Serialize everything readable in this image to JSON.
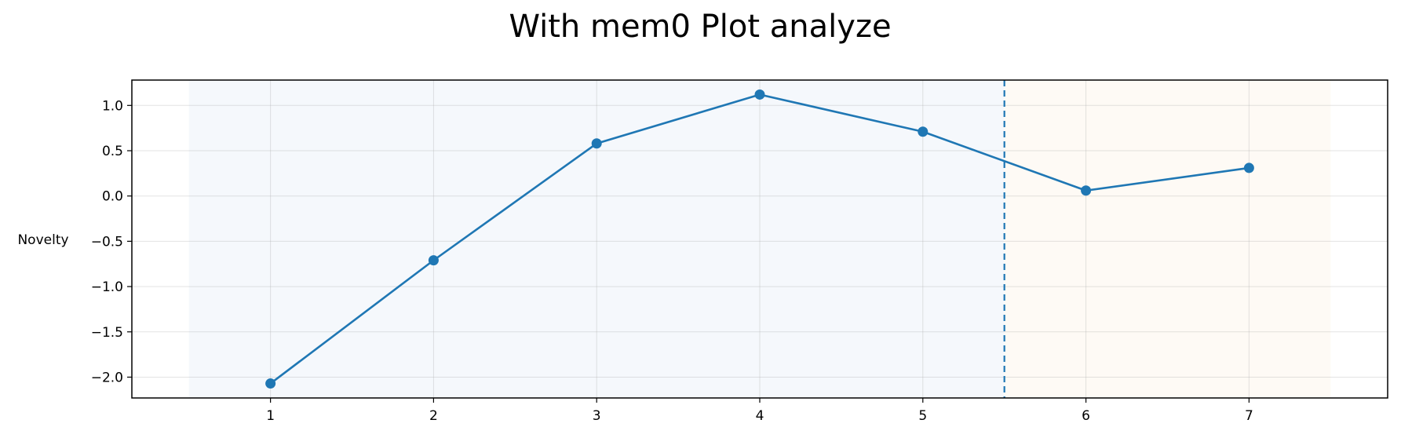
{
  "chart_data": {
    "type": "line",
    "title": "With mem0 Plot analyze",
    "xlabel": "",
    "ylabel": "Novelty",
    "x": [
      1,
      2,
      3,
      4,
      5,
      6,
      7
    ],
    "x_ticks": [
      1,
      2,
      3,
      4,
      5,
      6,
      7
    ],
    "x_tick_labels": [
      "1",
      "2",
      "3",
      "4",
      "5",
      "6",
      "7"
    ],
    "xlim": [
      0.15,
      7.85
    ],
    "ylim": [
      -2.23,
      1.28
    ],
    "y_ticks": [
      1.0,
      0.5,
      0.0,
      -0.5,
      -1.0,
      -1.5,
      -2.0
    ],
    "y_tick_labels": [
      "1.0",
      "0.5",
      "0.0",
      "−0.5",
      "−1.0",
      "−1.5",
      "−2.0"
    ],
    "series": [
      {
        "values": [
          -2.07,
          -0.71,
          0.58,
          1.12,
          0.71,
          0.06,
          0.31
        ],
        "color": "#1f77b4",
        "marker": "circle"
      }
    ],
    "shaded_regions": [
      {
        "x_start": 0.5,
        "x_end": 5.5,
        "color": "#f5f8fc"
      },
      {
        "x_start": 5.5,
        "x_end": 7.5,
        "color": "#fefaf5"
      }
    ],
    "vertical_lines": [
      {
        "x": 5.5,
        "style": "dashed",
        "color": "#1f77b4"
      }
    ],
    "grid": true,
    "legend": "none"
  }
}
